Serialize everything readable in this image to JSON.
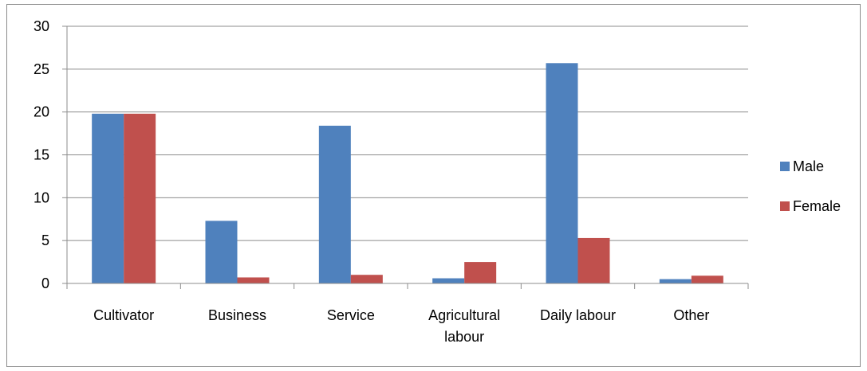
{
  "chart_data": {
    "type": "bar",
    "title": "",
    "xlabel": "",
    "ylabel": "",
    "categories": [
      [
        "Cultivator"
      ],
      [
        "Business"
      ],
      [
        "Service"
      ],
      [
        "Agricultural",
        "labour"
      ],
      [
        "Daily labour"
      ],
      [
        "Other"
      ]
    ],
    "series": [
      {
        "name": "Male",
        "color": "#4f81bd",
        "values": [
          19.8,
          7.3,
          18.4,
          0.6,
          25.7,
          0.5
        ]
      },
      {
        "name": "Female",
        "color": "#c0504d",
        "values": [
          19.8,
          0.7,
          1.0,
          2.5,
          5.3,
          0.9
        ]
      }
    ],
    "ylim": [
      0,
      30
    ],
    "yticks": [
      0,
      5,
      10,
      15,
      20,
      25,
      30
    ],
    "grid": true,
    "legend": "right"
  }
}
